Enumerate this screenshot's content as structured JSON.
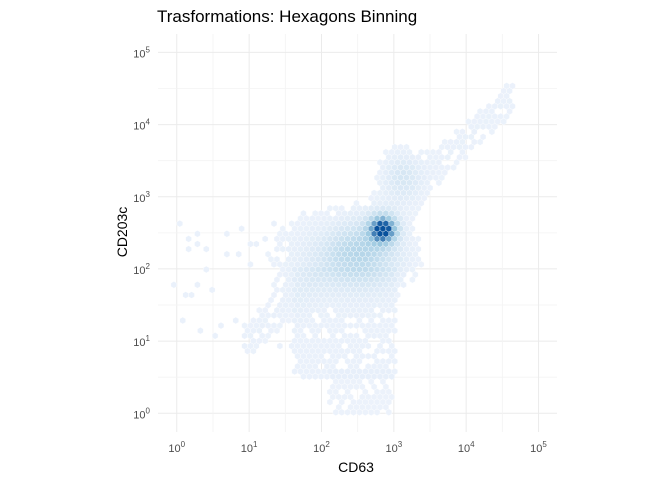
{
  "chart_data": {
    "type": "hexbin",
    "title": "Trasformations: Hexagons Binning",
    "xlabel": "CD63",
    "ylabel": "CD203c",
    "x_scale": "log10",
    "y_scale": "log10",
    "xlim": [
      0.55,
      180000
    ],
    "ylim": [
      0.55,
      180000
    ],
    "x_ticks": [
      {
        "value": 1,
        "base": "10",
        "exp": "0"
      },
      {
        "value": 10,
        "base": "10",
        "exp": "1"
      },
      {
        "value": 100,
        "base": "10",
        "exp": "2"
      },
      {
        "value": 1000,
        "base": "10",
        "exp": "3"
      },
      {
        "value": 10000,
        "base": "10",
        "exp": "4"
      },
      {
        "value": 100000,
        "base": "10",
        "exp": "5"
      }
    ],
    "y_ticks": [
      {
        "value": 1,
        "base": "10",
        "exp": "0"
      },
      {
        "value": 10,
        "base": "10",
        "exp": "1"
      },
      {
        "value": 100,
        "base": "10",
        "exp": "2"
      },
      {
        "value": 1000,
        "base": "10",
        "exp": "3"
      },
      {
        "value": 10000,
        "base": "10",
        "exp": "4"
      },
      {
        "value": 100000,
        "base": "10",
        "exp": "5"
      }
    ],
    "grid": true,
    "legend": "none",
    "colors": {
      "low": "#eef3fc",
      "mid": "#9ecae1",
      "high": "#08519c"
    },
    "density": {
      "description_units": "log10 data units",
      "components": [
        {
          "cx": 2.85,
          "cy": 2.55,
          "sx": 0.13,
          "sy": 0.13,
          "weight": 1.0
        },
        {
          "cx": 2.6,
          "cy": 2.2,
          "sx": 0.35,
          "sy": 0.3,
          "weight": 0.32
        },
        {
          "cx": 3.1,
          "cy": 3.3,
          "sx": 0.18,
          "sy": 0.22,
          "weight": 0.18
        },
        {
          "cx": 2.1,
          "cy": 2.2,
          "sx": 0.55,
          "sy": 0.35,
          "weight": 0.1
        }
      ],
      "band": {
        "slope": 0.92,
        "intercept": 0.12,
        "width": 0.55,
        "xmin": 0.9,
        "xmax": 4.65,
        "weight": 0.055
      },
      "extra_regions": [
        {
          "xmin": 1.6,
          "xmax": 3.05,
          "ymin": 0.5,
          "ymax": 2.0,
          "weight": 0.045
        },
        {
          "xmin": 2.1,
          "xmax": 3.0,
          "ymin": 0.0,
          "ymax": 0.6,
          "weight": 0.03
        }
      ]
    }
  }
}
